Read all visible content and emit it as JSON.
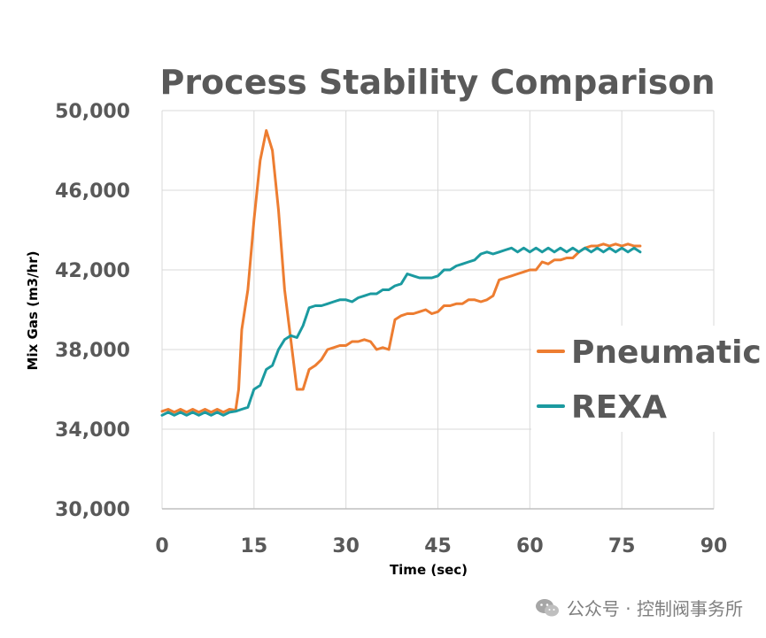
{
  "chart_data": {
    "type": "line",
    "title": "Process Stability Comparison",
    "xlabel": "Time (sec)",
    "ylabel": "Mix Gas (m3/hr)",
    "xlim": [
      0,
      90
    ],
    "ylim": [
      30000,
      50000
    ],
    "x_ticks": [
      0,
      15,
      30,
      45,
      60,
      75,
      90
    ],
    "x_tick_labels": [
      "0",
      "15",
      "30",
      "45",
      "60",
      "75",
      "90"
    ],
    "y_ticks": [
      30000,
      34000,
      38000,
      42000,
      46000,
      50000
    ],
    "y_tick_labels": [
      "30,000",
      "34,000",
      "38,000",
      "42,000",
      "46,000",
      "50,000"
    ],
    "grid": true,
    "legend_position": "right",
    "series": [
      {
        "name": "Pneumatic",
        "color": "#ED7D31",
        "points": [
          [
            0,
            34900
          ],
          [
            1,
            35000
          ],
          [
            2,
            34850
          ],
          [
            3,
            35000
          ],
          [
            4,
            34850
          ],
          [
            5,
            35000
          ],
          [
            6,
            34850
          ],
          [
            7,
            35000
          ],
          [
            8,
            34850
          ],
          [
            9,
            35000
          ],
          [
            10,
            34850
          ],
          [
            11,
            35000
          ],
          [
            12,
            34950
          ],
          [
            12.5,
            36000
          ],
          [
            13,
            39000
          ],
          [
            14,
            41000
          ],
          [
            15,
            44500
          ],
          [
            16,
            47500
          ],
          [
            17,
            49000
          ],
          [
            18,
            48000
          ],
          [
            19,
            45000
          ],
          [
            20,
            41000
          ],
          [
            21,
            38500
          ],
          [
            22,
            36000
          ],
          [
            23,
            36000
          ],
          [
            24,
            37000
          ],
          [
            25,
            37200
          ],
          [
            26,
            37500
          ],
          [
            27,
            38000
          ],
          [
            28,
            38100
          ],
          [
            29,
            38200
          ],
          [
            30,
            38200
          ],
          [
            31,
            38400
          ],
          [
            32,
            38400
          ],
          [
            33,
            38500
          ],
          [
            34,
            38400
          ],
          [
            35,
            38000
          ],
          [
            36,
            38100
          ],
          [
            37,
            38000
          ],
          [
            38,
            39500
          ],
          [
            39,
            39700
          ],
          [
            40,
            39800
          ],
          [
            41,
            39800
          ],
          [
            42,
            39900
          ],
          [
            43,
            40000
          ],
          [
            44,
            39800
          ],
          [
            45,
            39900
          ],
          [
            46,
            40200
          ],
          [
            47,
            40200
          ],
          [
            48,
            40300
          ],
          [
            49,
            40300
          ],
          [
            50,
            40500
          ],
          [
            51,
            40500
          ],
          [
            52,
            40400
          ],
          [
            53,
            40500
          ],
          [
            54,
            40700
          ],
          [
            55,
            41500
          ],
          [
            56,
            41600
          ],
          [
            57,
            41700
          ],
          [
            58,
            41800
          ],
          [
            59,
            41900
          ],
          [
            60,
            42000
          ],
          [
            61,
            42000
          ],
          [
            62,
            42400
          ],
          [
            63,
            42300
          ],
          [
            64,
            42500
          ],
          [
            65,
            42500
          ],
          [
            66,
            42600
          ],
          [
            67,
            42600
          ],
          [
            68,
            42900
          ],
          [
            69,
            43100
          ],
          [
            70,
            43200
          ],
          [
            71,
            43200
          ],
          [
            72,
            43300
          ],
          [
            73,
            43200
          ],
          [
            74,
            43300
          ],
          [
            75,
            43200
          ],
          [
            76,
            43300
          ],
          [
            77,
            43200
          ],
          [
            78,
            43200
          ]
        ]
      },
      {
        "name": "REXA",
        "color": "#1B9AA0",
        "points": [
          [
            0,
            34700
          ],
          [
            1,
            34850
          ],
          [
            2,
            34700
          ],
          [
            3,
            34850
          ],
          [
            4,
            34700
          ],
          [
            5,
            34850
          ],
          [
            6,
            34700
          ],
          [
            7,
            34850
          ],
          [
            8,
            34700
          ],
          [
            9,
            34850
          ],
          [
            10,
            34700
          ],
          [
            11,
            34850
          ],
          [
            12,
            34900
          ],
          [
            13,
            35000
          ],
          [
            14,
            35100
          ],
          [
            15,
            36000
          ],
          [
            16,
            36200
          ],
          [
            17,
            37000
          ],
          [
            18,
            37200
          ],
          [
            19,
            38000
          ],
          [
            20,
            38500
          ],
          [
            21,
            38700
          ],
          [
            22,
            38600
          ],
          [
            23,
            39200
          ],
          [
            24,
            40100
          ],
          [
            25,
            40200
          ],
          [
            26,
            40200
          ],
          [
            27,
            40300
          ],
          [
            28,
            40400
          ],
          [
            29,
            40500
          ],
          [
            30,
            40500
          ],
          [
            31,
            40400
          ],
          [
            32,
            40600
          ],
          [
            33,
            40700
          ],
          [
            34,
            40800
          ],
          [
            35,
            40800
          ],
          [
            36,
            41000
          ],
          [
            37,
            41000
          ],
          [
            38,
            41200
          ],
          [
            39,
            41300
          ],
          [
            40,
            41800
          ],
          [
            41,
            41700
          ],
          [
            42,
            41600
          ],
          [
            43,
            41600
          ],
          [
            44,
            41600
          ],
          [
            45,
            41700
          ],
          [
            46,
            42000
          ],
          [
            47,
            42000
          ],
          [
            48,
            42200
          ],
          [
            49,
            42300
          ],
          [
            50,
            42400
          ],
          [
            51,
            42500
          ],
          [
            52,
            42800
          ],
          [
            53,
            42900
          ],
          [
            54,
            42800
          ],
          [
            55,
            42900
          ],
          [
            56,
            43000
          ],
          [
            57,
            43100
          ],
          [
            58,
            42900
          ],
          [
            59,
            43100
          ],
          [
            60,
            42900
          ],
          [
            61,
            43100
          ],
          [
            62,
            42900
          ],
          [
            63,
            43100
          ],
          [
            64,
            42900
          ],
          [
            65,
            43100
          ],
          [
            66,
            42900
          ],
          [
            67,
            43100
          ],
          [
            68,
            42900
          ],
          [
            69,
            43100
          ],
          [
            70,
            42900
          ],
          [
            71,
            43100
          ],
          [
            72,
            42900
          ],
          [
            73,
            43100
          ],
          [
            74,
            42900
          ],
          [
            75,
            43100
          ],
          [
            76,
            42900
          ],
          [
            77,
            43100
          ],
          [
            78,
            42900
          ]
        ]
      }
    ]
  },
  "watermark": {
    "text": "公众号 · 控制阀事务所",
    "icon": "wechat-icon"
  }
}
